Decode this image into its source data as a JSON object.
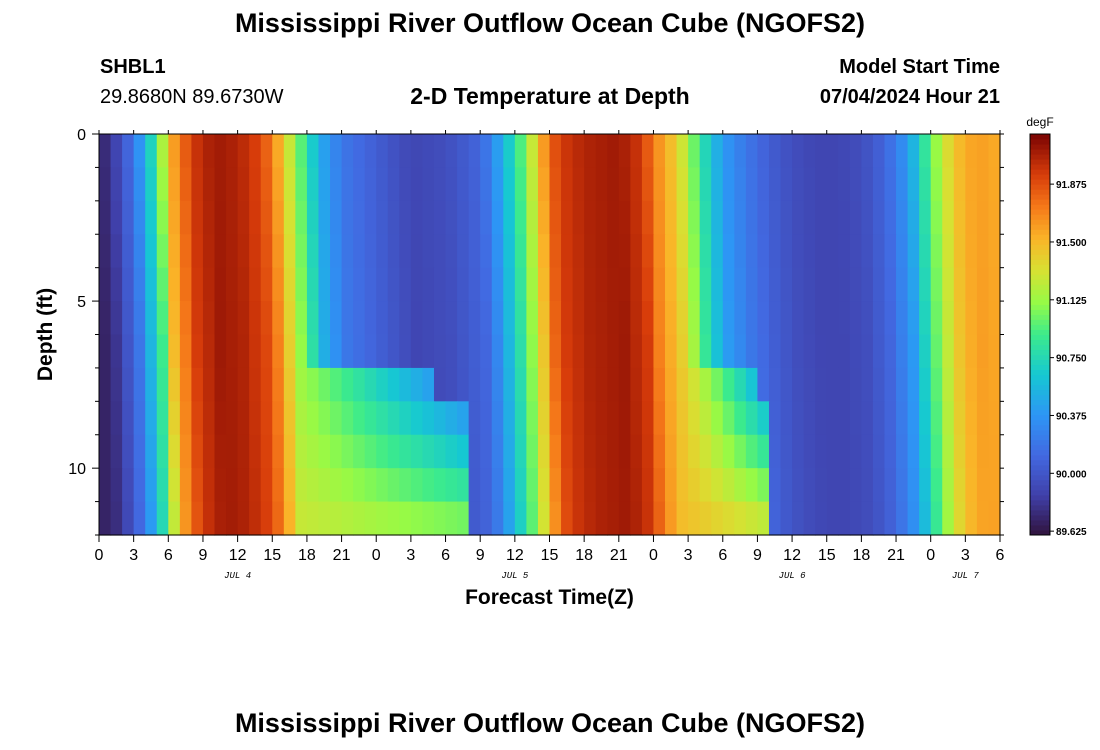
{
  "header": {
    "main_title": "Mississippi River Outflow Ocean Cube (NGOFS2)",
    "station_id": "SHBL1",
    "station_coords": "29.8680N  89.6730W",
    "product_title": "2-D Temperature at Depth",
    "model_start_label": "Model Start Time",
    "model_start_value": "07/04/2024 Hour 21"
  },
  "footer": {
    "title": "Mississippi River Outflow Ocean Cube (NGOFS2)"
  },
  "chart_data": {
    "type": "heatmap",
    "xlabel": "Forecast Time(Z)",
    "ylabel": "Depth (ft)",
    "x_tick_labels": [
      "0",
      "3",
      "6",
      "9",
      "12",
      "15",
      "18",
      "21",
      "0",
      "3",
      "6",
      "9",
      "12",
      "15",
      "18",
      "21",
      "0",
      "3",
      "6",
      "9",
      "12",
      "15",
      "18",
      "21",
      "0",
      "3",
      "6"
    ],
    "x_day_labels": [
      {
        "label": "JUL 4",
        "tick_index": 4
      },
      {
        "label": "JUL 5",
        "tick_index": 12
      },
      {
        "label": "JUL 6",
        "tick_index": 20
      },
      {
        "label": "JUL 7",
        "tick_index": 25
      }
    ],
    "x_range_hours": [
      0,
      78
    ],
    "y_ticks": [
      0,
      5,
      10
    ],
    "y_range_ft": [
      0,
      12
    ],
    "colorbar": {
      "unit": "degF",
      "ticks": [
        "89.625",
        "90.000",
        "90.375",
        "90.750",
        "91.125",
        "91.500",
        "91.875"
      ],
      "range": [
        89.6,
        92.2
      ]
    },
    "temperature_degF": {
      "description_of_axes": "rows = depth level, columns = forecast hour (0..78)",
      "depth_levels_ft": [
        0,
        1,
        2,
        3,
        4,
        5,
        6,
        7,
        8,
        9,
        10,
        11,
        12
      ],
      "surface_profile_keyframes": {
        "hour": [
          0,
          1,
          3,
          5,
          6,
          8,
          10,
          12,
          14,
          15,
          16,
          17,
          18,
          19,
          21,
          24,
          27,
          30,
          33,
          34,
          35,
          36,
          37,
          38,
          39,
          40,
          42,
          45,
          47,
          48,
          50,
          51,
          52,
          53,
          54,
          56,
          58,
          60,
          62,
          64,
          66,
          68,
          70,
          71,
          72,
          73,
          74,
          75,
          76,
          78
        ],
        "value": [
          89.7,
          89.8,
          90.2,
          90.9,
          91.5,
          91.95,
          92.1,
          92.05,
          91.9,
          91.7,
          91.4,
          91.1,
          90.8,
          90.5,
          90.2,
          90.05,
          89.9,
          89.95,
          90.1,
          90.3,
          90.55,
          90.8,
          91.1,
          91.45,
          91.8,
          91.95,
          92.05,
          92.1,
          91.95,
          91.7,
          91.4,
          91.15,
          90.85,
          90.6,
          90.4,
          90.2,
          90.05,
          89.95,
          89.9,
          89.9,
          89.95,
          90.1,
          90.4,
          90.7,
          91.0,
          91.25,
          91.45,
          91.55,
          91.6,
          91.55
        ]
      },
      "bottom_features": [
        {
          "description": "warm layer near bottom persisting after Jul 4 peak",
          "depth_ft_from": 7.5,
          "depth_ft_to": 12,
          "hours_from": 15,
          "hours_to": 32,
          "value": 91.3
        },
        {
          "description": "warm layer near bottom after Jul 5 peak",
          "depth_ft_from": 7.5,
          "depth_ft_to": 12,
          "hours_from": 50,
          "hours_to": 58,
          "value": 91.5
        }
      ]
    }
  }
}
